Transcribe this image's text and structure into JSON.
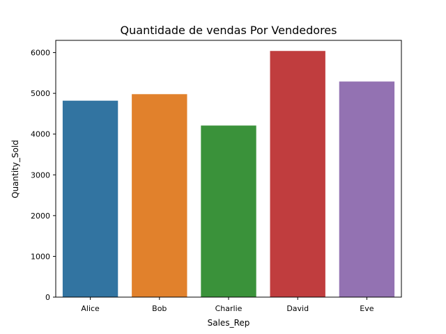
{
  "chart_data": {
    "type": "bar",
    "title": "Quantidade de vendas Por Vendedores",
    "xlabel": "Sales_Rep",
    "ylabel": "Quantity_Sold",
    "categories": [
      "Alice",
      "Bob",
      "Charlie",
      "David",
      "Eve"
    ],
    "values": [
      4820,
      4980,
      4210,
      6040,
      5290
    ],
    "colors": [
      "#3274a1",
      "#e1812c",
      "#3a923a",
      "#c03d3e",
      "#9372b2"
    ],
    "ylim": [
      0,
      6300
    ],
    "yticks": [
      0,
      1000,
      2000,
      3000,
      4000,
      5000,
      6000
    ],
    "grid": false,
    "legend": "none"
  }
}
